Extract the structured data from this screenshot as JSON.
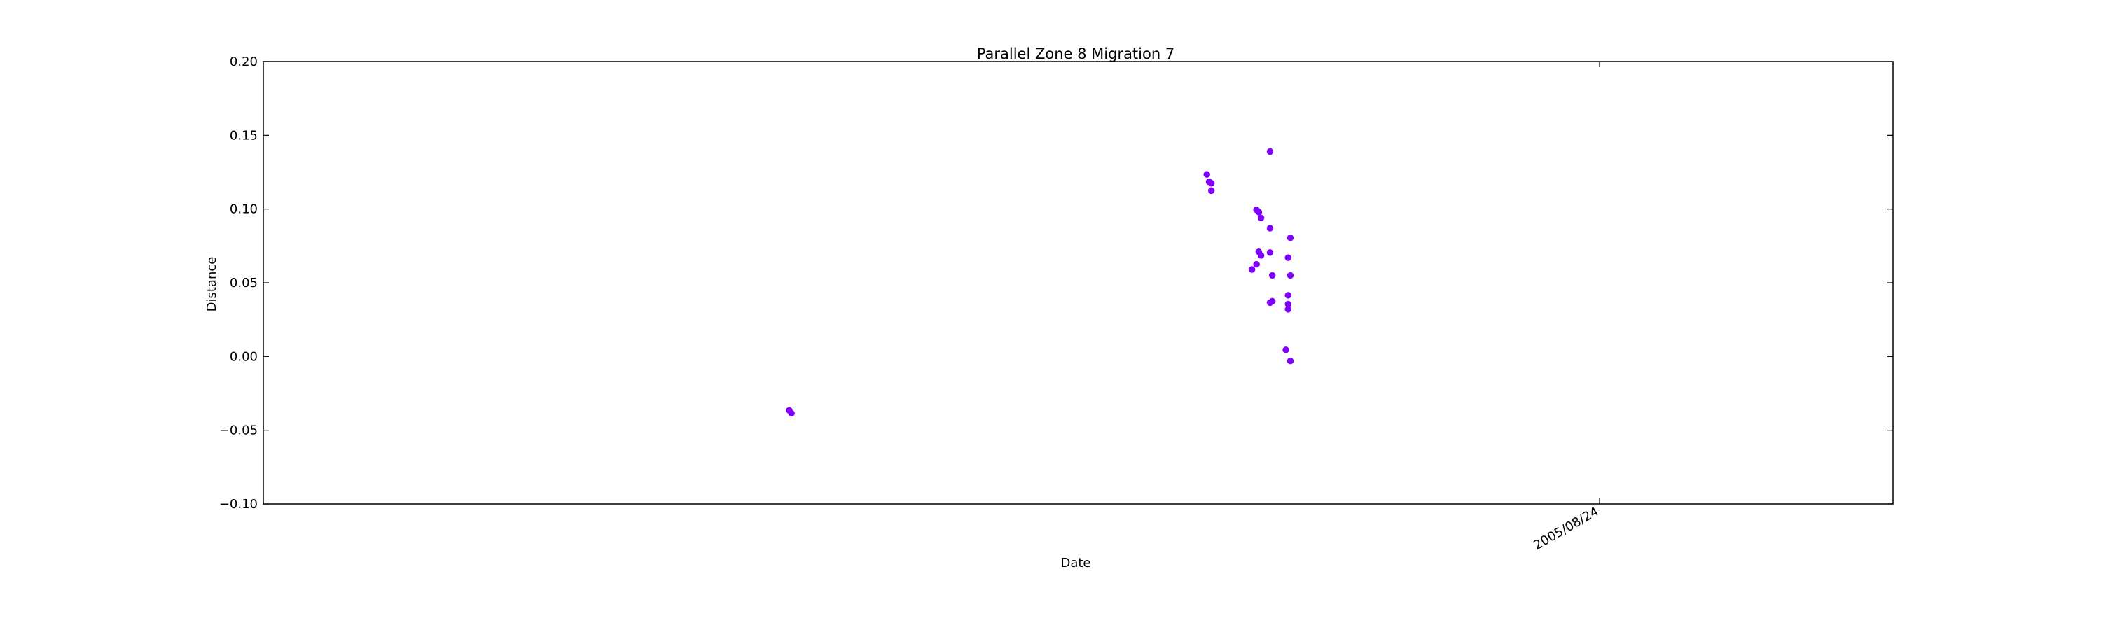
{
  "chart_data": {
    "type": "scatter",
    "title": "Parallel Zone 8 Migration 7",
    "xlabel": "Date",
    "ylabel": "Distance",
    "ylim": [
      -0.1,
      0.2
    ],
    "yticks": [
      -0.1,
      -0.05,
      0.0,
      0.05,
      0.1,
      0.15,
      0.2
    ],
    "ytick_labels": [
      "−0.10",
      "−0.05",
      "0.00",
      "0.05",
      "0.10",
      "0.15",
      "0.20"
    ],
    "xlim": [
      "2004-01-10",
      "2006-01-01"
    ],
    "xticks": [
      "2005-08-24"
    ],
    "xtick_labels": [
      "2005/08/24"
    ],
    "grid": false,
    "color": "#7f00ff",
    "series": [
      {
        "name": "Distance",
        "points": [
          {
            "x": "2004-08-30",
            "y": -0.0365
          },
          {
            "x": "2004-08-31",
            "y": -0.0385
          },
          {
            "x": "2005-03-03",
            "y": 0.1235
          },
          {
            "x": "2005-03-04",
            "y": 0.1185
          },
          {
            "x": "2005-03-05",
            "y": 0.1175
          },
          {
            "x": "2005-03-05",
            "y": 0.1125
          },
          {
            "x": "2005-03-23",
            "y": 0.059
          },
          {
            "x": "2005-03-25",
            "y": 0.0625
          },
          {
            "x": "2005-03-25",
            "y": 0.0995
          },
          {
            "x": "2005-03-26",
            "y": 0.098
          },
          {
            "x": "2005-03-26",
            "y": 0.071
          },
          {
            "x": "2005-03-27",
            "y": 0.0685
          },
          {
            "x": "2005-03-27",
            "y": 0.094
          },
          {
            "x": "2005-03-31",
            "y": 0.139
          },
          {
            "x": "2005-03-31",
            "y": 0.087
          },
          {
            "x": "2005-03-31",
            "y": 0.0705
          },
          {
            "x": "2005-03-31",
            "y": 0.0365
          },
          {
            "x": "2005-04-01",
            "y": 0.0375
          },
          {
            "x": "2005-04-01",
            "y": 0.055
          },
          {
            "x": "2005-04-07",
            "y": 0.0045
          },
          {
            "x": "2005-04-08",
            "y": 0.0355
          },
          {
            "x": "2005-04-08",
            "y": 0.032
          },
          {
            "x": "2005-04-08",
            "y": 0.0415
          },
          {
            "x": "2005-04-08",
            "y": 0.067
          },
          {
            "x": "2005-04-09",
            "y": 0.0805
          },
          {
            "x": "2005-04-09",
            "y": 0.055
          },
          {
            "x": "2005-04-09",
            "y": -0.003
          }
        ]
      }
    ]
  }
}
